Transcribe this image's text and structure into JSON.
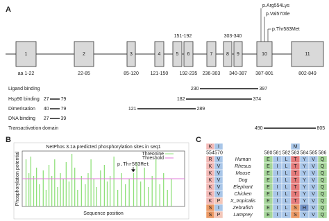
{
  "panel_a": {
    "label": "A",
    "exons": [
      {
        "number": "1",
        "range": "aa 1-22"
      },
      {
        "number": "2",
        "range": "22-85"
      },
      {
        "number": "3",
        "range": "85-120"
      },
      {
        "number": "4",
        "range": "121-150"
      },
      {
        "number": "5",
        "range": "151-192"
      },
      {
        "number": "6",
        "range": "192-235"
      },
      {
        "number": "7",
        "range": "236-303"
      },
      {
        "number": "8",
        "range": "303-340"
      },
      {
        "number": "9",
        "range": "340-387"
      },
      {
        "number": "10",
        "range": "387-801"
      },
      {
        "number": "11",
        "range": "802-849"
      }
    ],
    "mutations": [
      "p.Arg554Lys",
      "p.Val570Ile",
      "p.Thr583Met"
    ],
    "domains": [
      {
        "name": "Ligand binding",
        "segments": [
          {
            "start": 230,
            "end": 397
          }
        ]
      },
      {
        "name": "Hsp90 binding",
        "segments": [
          {
            "start": 27,
            "end": 79
          },
          {
            "start": 182,
            "end": 374
          }
        ]
      },
      {
        "name": "Dimerisation",
        "segments": [
          {
            "start": 40,
            "end": 79
          },
          {
            "start": 121,
            "end": 289
          }
        ]
      },
      {
        "name": "DNA binding",
        "segments": [
          {
            "start": 27,
            "end": 39
          }
        ]
      },
      {
        "name": "Transactivation domain",
        "segments": [
          {
            "start": 490,
            "end": 805
          }
        ]
      }
    ]
  },
  "panel_b": {
    "label": "B",
    "title": "NetPhos 3.1a predicted phosphorylation sites in seq1",
    "legend": [
      "Threonine",
      "Threshold"
    ],
    "y_label": "Phosphorylation potential",
    "x_label": "Sequence position",
    "annotation": "p.Thr583Met",
    "threshold": 0.5,
    "xlim": [
      0,
      850
    ],
    "ylim": [
      0,
      1
    ],
    "sites": {
      "x": [
        20,
        35,
        45,
        60,
        75,
        90,
        110,
        125,
        140,
        155,
        170,
        185,
        200,
        215,
        230,
        245,
        260,
        275,
        290,
        310,
        330,
        345,
        360,
        375,
        390,
        410,
        430,
        445,
        460,
        480,
        500,
        520,
        540,
        560,
        583,
        600,
        620,
        640,
        660,
        680,
        700,
        720,
        740,
        760,
        780
      ],
      "y": [
        0.85,
        0.6,
        0.9,
        0.55,
        0.7,
        0.4,
        0.65,
        0.3,
        0.75,
        0.55,
        0.85,
        0.35,
        0.6,
        0.5,
        0.8,
        0.45,
        0.95,
        0.7,
        0.3,
        0.55,
        0.4,
        0.6,
        0.85,
        0.5,
        0.35,
        0.65,
        0.75,
        0.45,
        0.55,
        0.9,
        0.3,
        0.6,
        0.4,
        0.5,
        0.6,
        0.8,
        0.45,
        0.7,
        0.35,
        0.55,
        0.85,
        0.4,
        0.6,
        0.3,
        0.5
      ]
    }
  },
  "panel_c": {
    "label": "C",
    "positions": [
      554,
      570,
      580,
      581,
      582,
      583,
      584,
      585,
      586
    ],
    "reference": [
      "K",
      "I",
      null,
      null,
      null,
      "M",
      null,
      null,
      null
    ],
    "species": [
      {
        "name": "Human",
        "residues": [
          "R",
          "V",
          "E",
          "I",
          "L",
          "T",
          "Y",
          "V",
          "Q"
        ]
      },
      {
        "name": "Rhesus",
        "residues": [
          "K",
          "V",
          "E",
          "I",
          "L",
          "T",
          "Y",
          "V",
          "Q"
        ]
      },
      {
        "name": "Mouse",
        "residues": [
          "K",
          "V",
          "E",
          "I",
          "L",
          "T",
          "Y",
          "V",
          "Q"
        ]
      },
      {
        "name": "Dog",
        "residues": [
          "K",
          "V",
          "E",
          "I",
          "L",
          "T",
          "Y",
          "V",
          "Q"
        ]
      },
      {
        "name": "Elephant",
        "residues": [
          "K",
          "V",
          "E",
          "I",
          "L",
          "T",
          "Y",
          "V",
          "Q"
        ]
      },
      {
        "name": "Chicken",
        "residues": [
          "K",
          "V",
          "E",
          "I",
          "L",
          "T",
          "Y",
          "V",
          "Q"
        ]
      },
      {
        "name": "X_tropicalis",
        "residues": [
          "K",
          "P",
          "E",
          "I",
          "L",
          "T",
          "Y",
          "V",
          "Q"
        ]
      },
      {
        "name": "Zebrafish",
        "residues": [
          "S",
          "I",
          "E",
          "I",
          "L",
          "S",
          "H",
          "V",
          "Q"
        ]
      },
      {
        "name": "Lamprey",
        "residues": [
          "S",
          "P",
          "E",
          "I",
          "L",
          "S",
          "Y",
          "V",
          "Q"
        ]
      }
    ]
  }
}
